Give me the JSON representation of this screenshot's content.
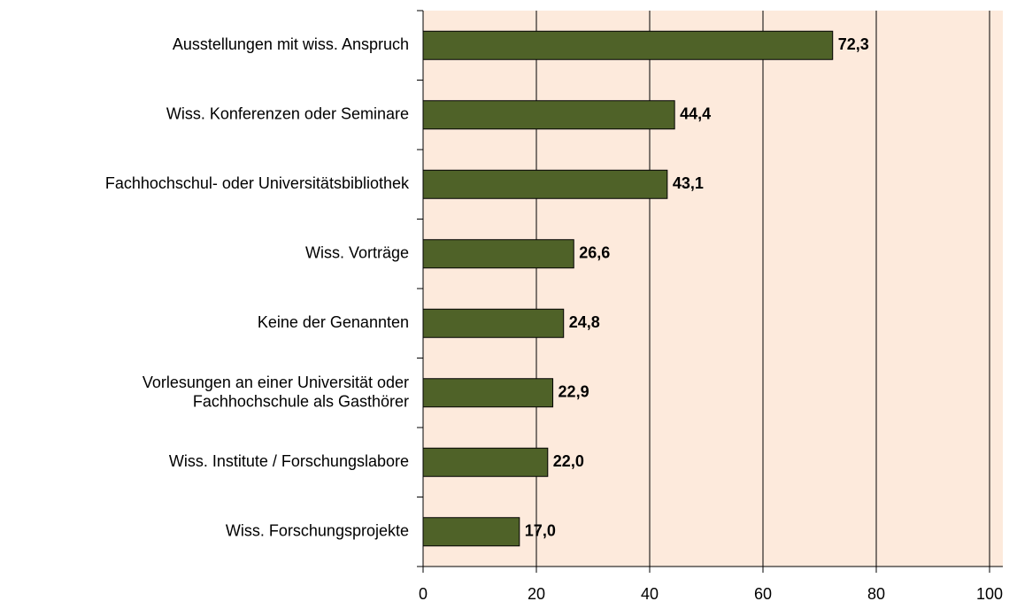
{
  "chart_data": {
    "type": "hbar",
    "categories": [
      "Ausstellungen mit wiss. Anspruch",
      "Wiss. Konferenzen oder Seminare",
      "Fachhochschul- oder Universitätsbibliothek",
      "Wiss. Vorträge",
      "Keine der Genannten",
      "Vorlesungen an einer Universität oder\nFachhochschule als Gasthörer",
      "Wiss. Institute / Forschungslabore",
      "Wiss. Forschungsprojekte"
    ],
    "values": [
      72.3,
      44.4,
      43.1,
      26.6,
      24.8,
      22.9,
      22.0,
      17.0
    ],
    "value_labels": [
      "72,3",
      "44,4",
      "43,1",
      "26,6",
      "24,8",
      "22,9",
      "22,0",
      "17,0"
    ],
    "color": "#4f6228",
    "xlim": [
      0,
      100
    ],
    "xticks": [
      0,
      20,
      40,
      60,
      80,
      100
    ],
    "grid": true
  }
}
